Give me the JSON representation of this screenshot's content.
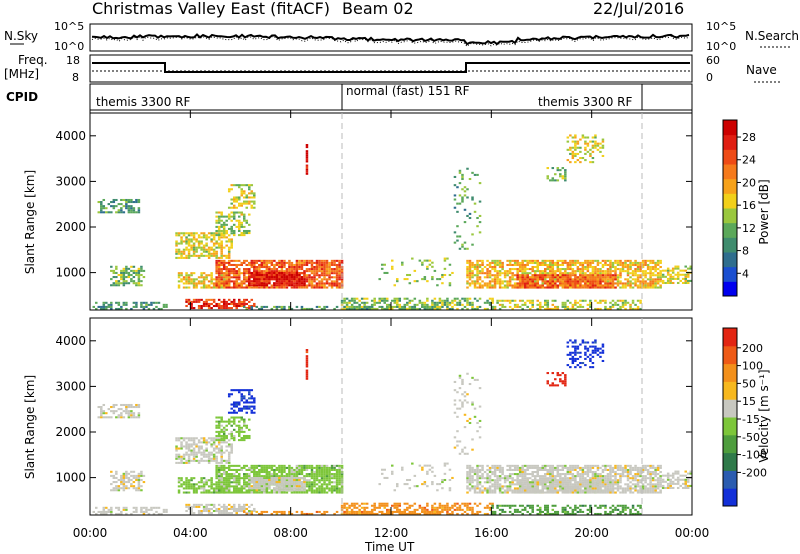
{
  "header": {
    "title": "Christmas Valley East (fitACF)",
    "beam": "Beam 02",
    "date": "22/Jul/2016"
  },
  "strips": {
    "nsky_label": "N.Sky",
    "nsearch_label": "N.Search",
    "noise_ticks": [
      "10^5",
      "10^0"
    ],
    "freq_label_1": "Freq.",
    "freq_label_2": "[MHz]",
    "freq_ticks": [
      "18",
      "8"
    ],
    "nave_label": "Nave",
    "nave_ticks": [
      "60",
      "0"
    ],
    "cpid_label": "CPID",
    "cpid_segments": [
      "themis 3300 RF",
      "normal (fast) 151 RF",
      "themis 3300 RF"
    ]
  },
  "colors": {
    "power": [
      "#0000ee",
      "#1b4fd0",
      "#2f6e8e",
      "#3f8c6e",
      "#5ba85a",
      "#9ac73e",
      "#f2d01a",
      "#f7a21b",
      "#f57a1c",
      "#ee4b16",
      "#e01e12",
      "#cc0000"
    ],
    "velocity": [
      "#1330d8",
      "#2b5cb0",
      "#2f7a4a",
      "#4e9d3d",
      "#7dc63a",
      "#c8c8c0",
      "#f7b81e",
      "#f3901b",
      "#ee5a16",
      "#e22512"
    ]
  },
  "chart_data": [
    {
      "type": "heatmap",
      "name": "power",
      "ylabel": "Slant Range [km]",
      "ylim": [
        180,
        4500
      ],
      "yticks": [
        "1000",
        "2000",
        "3000",
        "4000"
      ],
      "xlim_hours": [
        0,
        24
      ],
      "colorbar_label": "Power [dB]",
      "colorbar_ticks": [
        "4",
        "8",
        "12",
        "16",
        "20",
        "24",
        "28"
      ],
      "colorbar_range": [
        0,
        31
      ]
    },
    {
      "type": "heatmap",
      "name": "velocity",
      "ylabel": "Slant Range [km]",
      "ylim": [
        180,
        4500
      ],
      "yticks": [
        "1000",
        "2000",
        "3000",
        "4000"
      ],
      "xlabel": "Time UT",
      "xticks": [
        "00:00",
        "04:00",
        "08:00",
        "12:00",
        "16:00",
        "20:00",
        "00:00"
      ],
      "colorbar_label": "Velocity [m s⁻¹]",
      "colorbar_ticks": [
        "200",
        "100",
        "50",
        "15",
        "-15",
        "-50",
        "-100",
        "-200"
      ]
    }
  ]
}
